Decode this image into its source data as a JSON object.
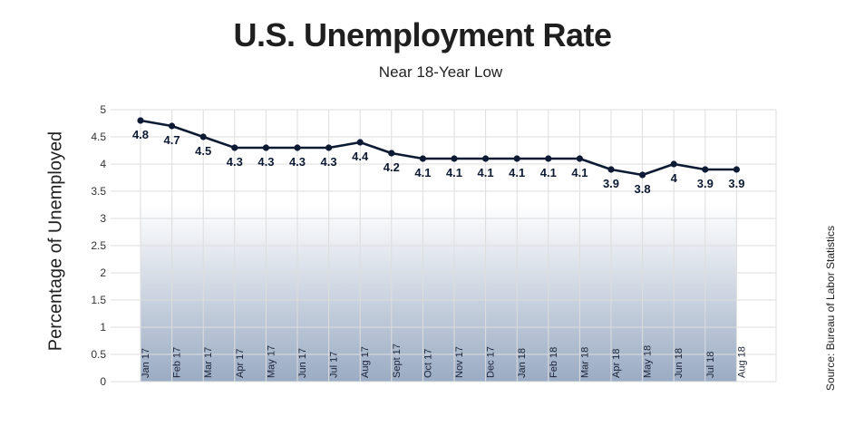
{
  "chart_data": {
    "type": "line",
    "title": "U.S. Unemployment Rate",
    "subtitle": "Near 18-Year Low",
    "ylabel": "Percentage of Unemployed",
    "xlabel": "",
    "source": "Source: Bureau of Labor Statistics",
    "ylim": [
      0,
      5
    ],
    "yticks": [
      "0",
      "0.5",
      "1",
      "1.5",
      "2",
      "2.5",
      "3",
      "3.5",
      "4",
      "4.5",
      "5"
    ],
    "grid": true,
    "categories": [
      "Jan 17",
      "Feb 17",
      "Mar 17",
      "Apr 17",
      "May 17",
      "Jun 17",
      "Jul 17",
      "Aug 17",
      "Sept 17",
      "Oct 17",
      "Nov 17",
      "Dec 17",
      "Jan 18",
      "Feb 18",
      "Mar 18",
      "Apr 18",
      "May 18",
      "Jun 18",
      "Jul 18",
      "Aug 18"
    ],
    "values": [
      4.8,
      4.7,
      4.5,
      4.3,
      4.3,
      4.3,
      4.3,
      4.4,
      4.2,
      4.1,
      4.1,
      4.1,
      4.1,
      4.1,
      4.1,
      3.9,
      3.8,
      4,
      3.9,
      3.9
    ],
    "data_labels": [
      "4.8",
      "4.7",
      "4.5",
      "4.3",
      "4.3",
      "4.3",
      "4.3",
      "4.4",
      "4.2",
      "4.1",
      "4.1",
      "4.1",
      "4.1",
      "4.1",
      "4.1",
      "3.9",
      "3.8",
      "4",
      "3.9",
      "3.9"
    ],
    "colors": {
      "line": "#0d1a33",
      "marker": "#0d1a33",
      "band_top": "#ffffff",
      "band_bottom": "#9aabc3",
      "grid": "#dddddd"
    }
  }
}
